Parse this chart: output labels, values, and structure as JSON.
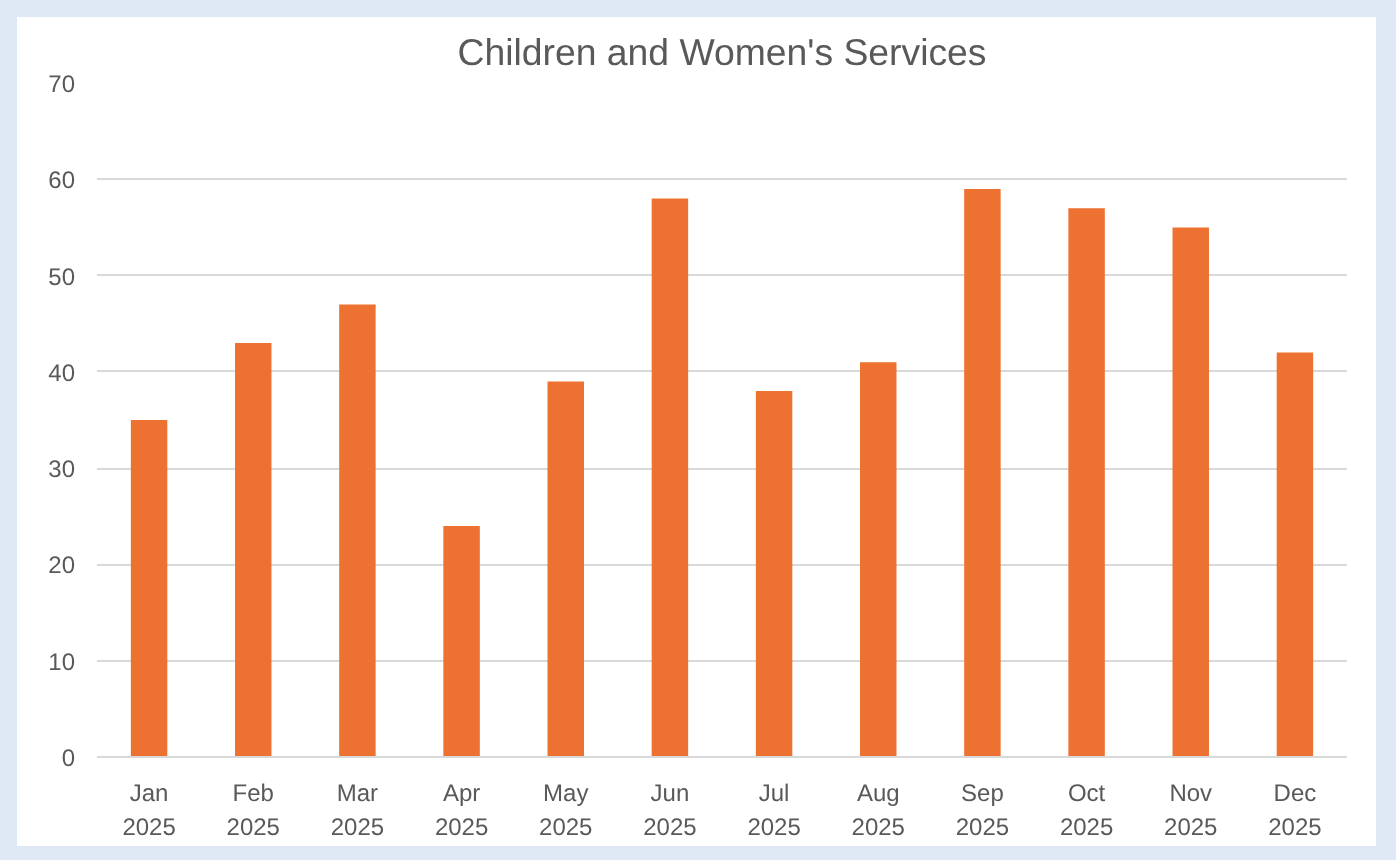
{
  "chart_data": {
    "type": "bar",
    "title": "Children and Women's Services",
    "categories": [
      "Jan 2025",
      "Feb 2025",
      "Mar 2025",
      "Apr 2025",
      "May 2025",
      "Jun 2025",
      "Jul 2025",
      "Aug 2025",
      "Sep 2025",
      "Oct 2025",
      "Nov 2025",
      "Dec 2025"
    ],
    "values": [
      35,
      43,
      47,
      24,
      39,
      58,
      38,
      41,
      59,
      57,
      55,
      42
    ],
    "color": "#ed7131",
    "ylim": [
      0,
      70
    ],
    "yticks": [
      0,
      10,
      20,
      30,
      40,
      50,
      60,
      70
    ],
    "grid": "y"
  }
}
